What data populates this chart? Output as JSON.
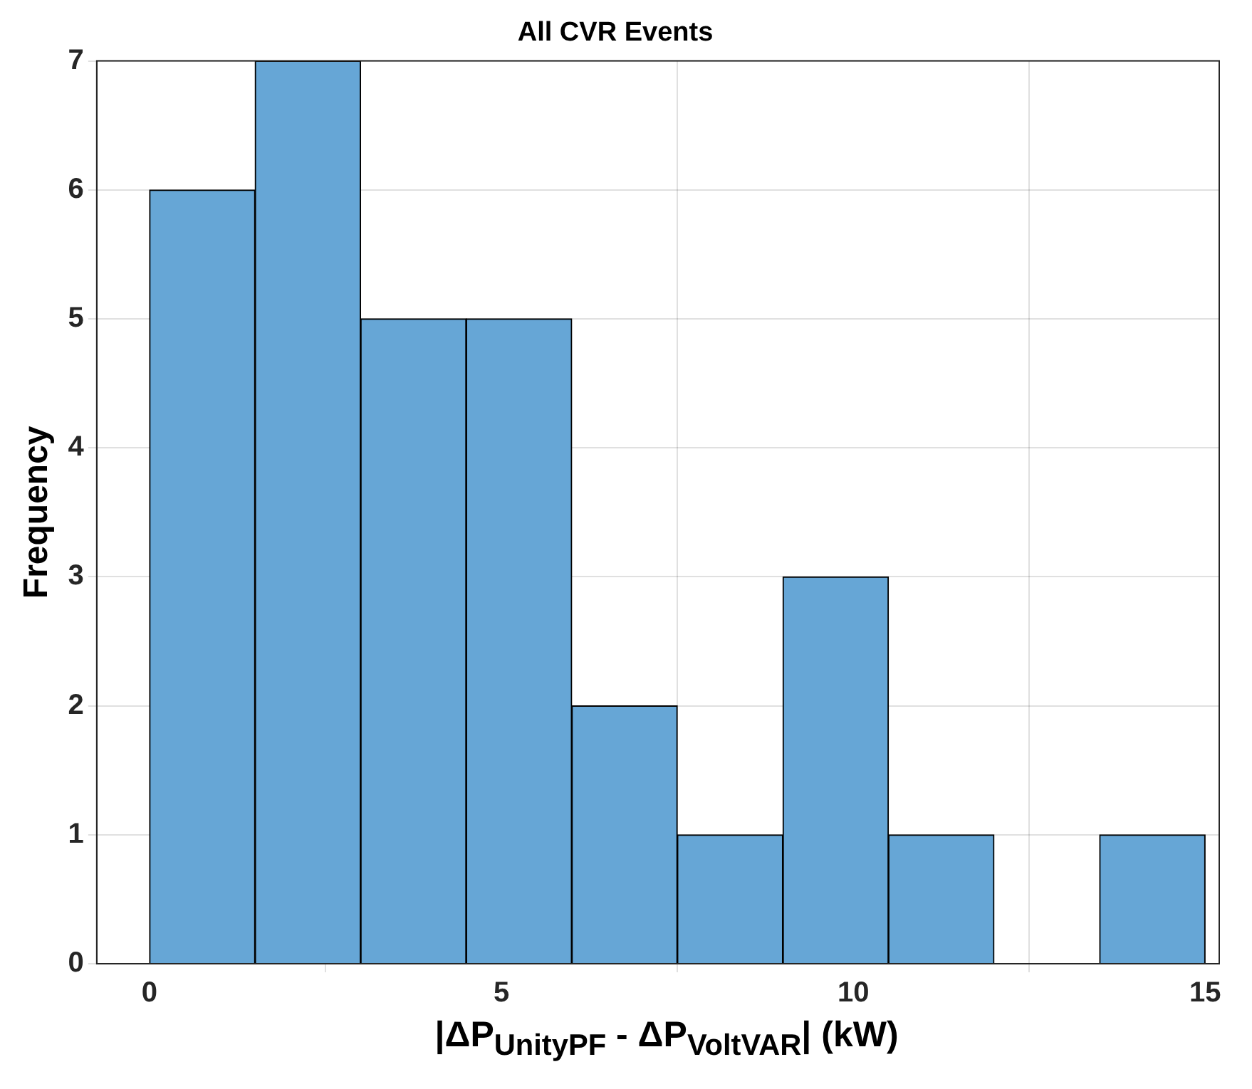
{
  "chart_data": {
    "type": "histogram",
    "title": "All CVR Events",
    "xlabel": "|ΔP$_{UnityPF}$ - ΔP$_{VoltVAR}$| (kW)",
    "ylabel": "Frequency",
    "bins": [
      0,
      1.5,
      3,
      4.5,
      6,
      7.5,
      9,
      10.5,
      12,
      13.5,
      15
    ],
    "values": [
      6,
      7,
      5,
      5,
      2,
      1,
      3,
      1,
      0,
      1
    ],
    "color": "#66a6d6",
    "xlim": [
      -0.75,
      15.2
    ],
    "xticks": [
      0,
      5,
      10,
      15
    ],
    "ylim": [
      0,
      7
    ],
    "yticks": [
      0,
      1,
      2,
      3,
      4,
      5,
      6,
      7
    ],
    "grid": true
  }
}
